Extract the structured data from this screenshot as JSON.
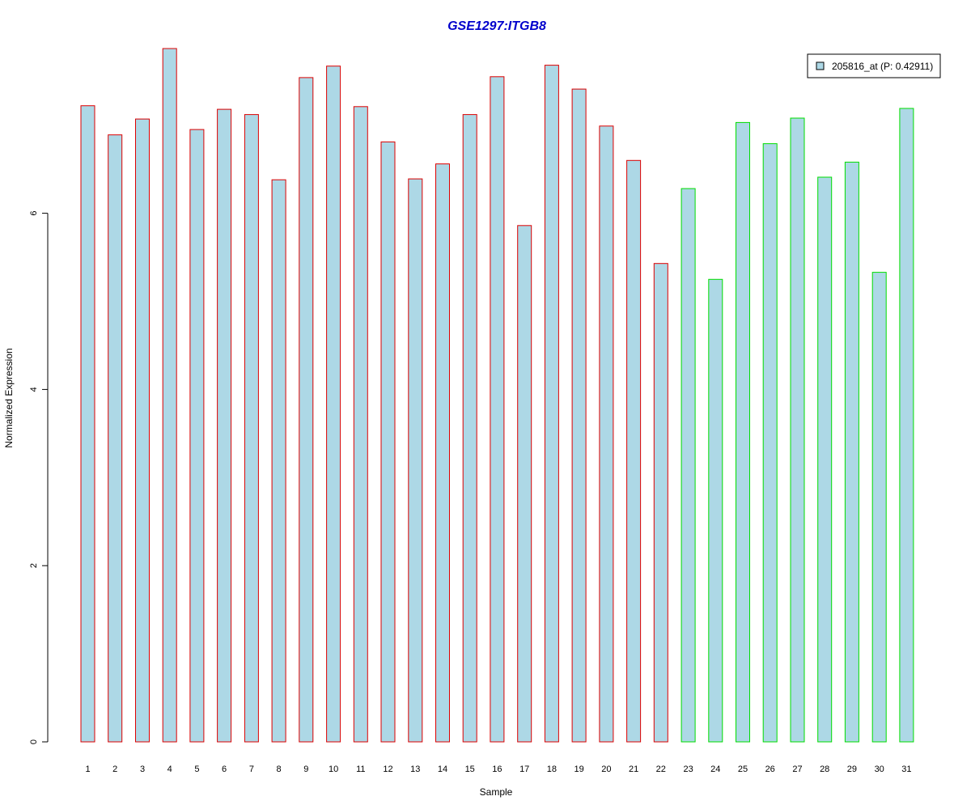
{
  "chart_data": {
    "type": "bar",
    "title": "GSE1297:ITGB8",
    "xlabel": "Sample",
    "ylabel": "Normalized Expression",
    "ylim": [
      0,
      7.86
    ],
    "yticks": [
      0,
      2,
      4,
      6
    ],
    "categories": [
      "1",
      "2",
      "3",
      "4",
      "5",
      "6",
      "7",
      "8",
      "9",
      "10",
      "11",
      "12",
      "13",
      "14",
      "15",
      "16",
      "17",
      "18",
      "19",
      "20",
      "21",
      "22",
      "23",
      "24",
      "25",
      "26",
      "27",
      "28",
      "29",
      "30",
      "31"
    ],
    "values": [
      7.22,
      6.89,
      7.07,
      7.87,
      6.95,
      7.18,
      7.12,
      6.38,
      7.54,
      7.67,
      7.21,
      6.81,
      6.39,
      6.56,
      7.12,
      7.55,
      5.86,
      7.68,
      7.41,
      6.99,
      6.6,
      5.43,
      6.28,
      5.25,
      7.03,
      6.79,
      7.08,
      6.41,
      6.58,
      5.33,
      7.19
    ],
    "groups": [
      "g1",
      "g1",
      "g1",
      "g1",
      "g1",
      "g1",
      "g1",
      "g1",
      "g1",
      "g1",
      "g1",
      "g1",
      "g1",
      "g1",
      "g1",
      "g1",
      "g1",
      "g1",
      "g1",
      "g1",
      "g1",
      "g1",
      "g2",
      "g2",
      "g2",
      "g2",
      "g2",
      "g2",
      "g2",
      "g2",
      "g2"
    ],
    "legend": {
      "position": "top-right",
      "entries": [
        "205816_at (P: 0.42911)"
      ]
    },
    "grid": false
  },
  "colors": {
    "title": "#0000cc",
    "bar_fill": "#add8e6",
    "group_g1_border": "#dd0000",
    "group_g2_border": "#00dd00",
    "axis": "#000000"
  }
}
